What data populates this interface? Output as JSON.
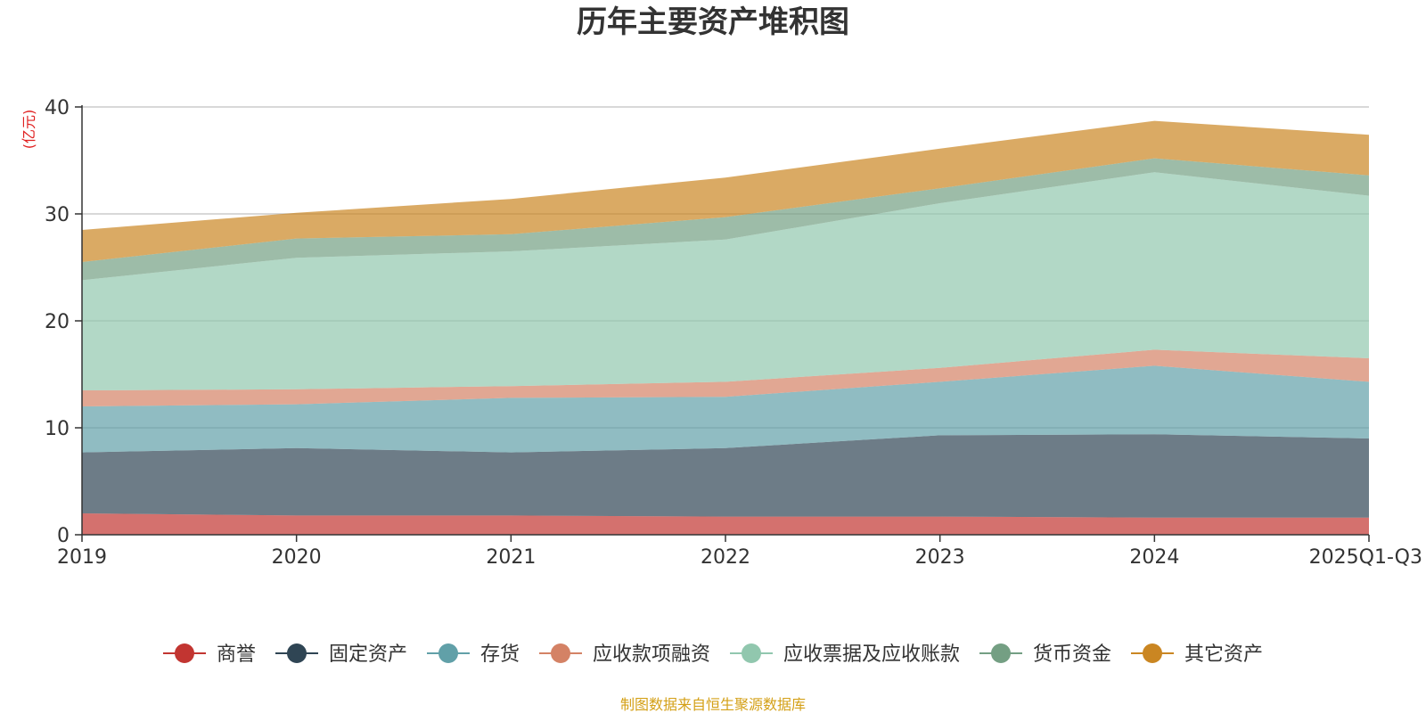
{
  "chart_data": {
    "type": "area",
    "title": "历年主要资产堆积图",
    "ylabel": "(亿元)",
    "ylim": [
      0,
      40
    ],
    "yticks": [
      0,
      10,
      20,
      30,
      40
    ],
    "stacked": true,
    "categories": [
      "2019",
      "2020",
      "2021",
      "2022",
      "2023",
      "2024",
      "2025Q1-Q3"
    ],
    "series": [
      {
        "name": "商誉",
        "color": "#c23531",
        "values": [
          2.0,
          1.8,
          1.8,
          1.7,
          1.7,
          1.6,
          1.6
        ]
      },
      {
        "name": "固定资产",
        "color": "#2f4554",
        "values": [
          5.7,
          6.3,
          5.9,
          6.4,
          7.6,
          7.8,
          7.4
        ]
      },
      {
        "name": "存货",
        "color": "#61a0a8",
        "values": [
          4.3,
          4.1,
          5.1,
          4.8,
          5.0,
          6.4,
          5.3
        ]
      },
      {
        "name": "应收款项融资",
        "color": "#d48265",
        "values": [
          1.5,
          1.4,
          1.1,
          1.4,
          1.3,
          1.5,
          2.2
        ]
      },
      {
        "name": "应收票据及应收账款",
        "color": "#91c7ae",
        "values": [
          10.3,
          12.3,
          12.6,
          13.3,
          15.4,
          16.6,
          15.2
        ]
      },
      {
        "name": "货币资金",
        "color": "#749f83",
        "values": [
          1.7,
          1.8,
          1.6,
          2.1,
          1.4,
          1.3,
          1.9
        ]
      },
      {
        "name": "其它资产",
        "color": "#ca8622",
        "values": [
          3.0,
          2.4,
          3.3,
          3.7,
          3.7,
          3.5,
          3.8
        ]
      }
    ],
    "legend_position": "bottom"
  },
  "source_note": "制图数据来自恒生聚源数据库",
  "source_color": "#d4a017",
  "unit_color": "#e02020"
}
